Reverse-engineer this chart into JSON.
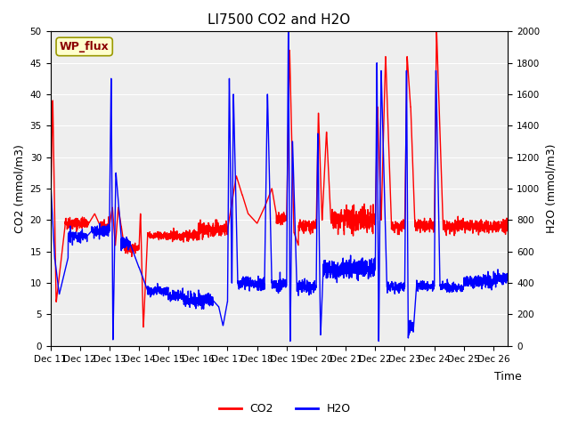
{
  "title": "LI7500 CO2 and H2O",
  "xlabel": "Time",
  "ylabel_left": "CO2 (mmol/m3)",
  "ylabel_right": "H2O (mmol/m3)",
  "co2_color": "red",
  "h2o_color": "blue",
  "line_width": 1.0,
  "ylim_left": [
    0,
    50
  ],
  "ylim_right": [
    0,
    2000
  ],
  "bg_color": "#f0f0f0",
  "grid_color": "white",
  "annotation_text": "WP_flux",
  "annotation_bg": "#ffffcc",
  "annotation_border": "#cccc00",
  "x_tick_labels": [
    "Dec 11",
    "Dec 12",
    "Dec 13",
    "Dec 14",
    "Dec 15",
    "Dec 16",
    "Dec 17",
    "Dec 18",
    "Dec 19",
    "Dec 20",
    "Dec 21",
    "Dec 22",
    "Dec 23",
    "Dec 24",
    "Dec 25",
    "Dec 26"
  ],
  "xlim": [
    0,
    15.5
  ],
  "title_fontsize": 11,
  "label_fontsize": 9,
  "tick_fontsize": 7.5
}
